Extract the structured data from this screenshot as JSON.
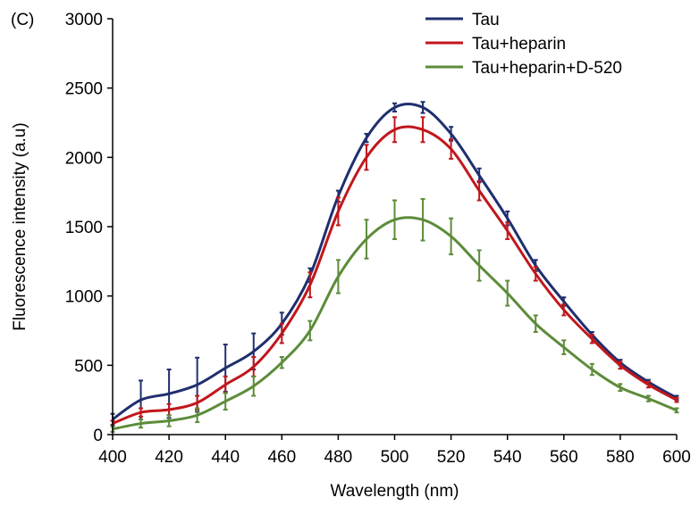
{
  "panel_label": "(C)",
  "chart_data": {
    "type": "line",
    "title": "",
    "xlabel": "Wavelength (nm)",
    "ylabel": "Fluorescence intensity (a.u)",
    "xlim": [
      400,
      600
    ],
    "ylim": [
      0,
      3000
    ],
    "xticks": [
      400,
      420,
      440,
      460,
      480,
      500,
      520,
      540,
      560,
      580,
      600
    ],
    "yticks": [
      0,
      500,
      1000,
      1500,
      2000,
      2500,
      3000
    ],
    "grid": false,
    "legend_position": "top-right",
    "x": [
      400,
      410,
      420,
      430,
      440,
      450,
      460,
      470,
      480,
      490,
      500,
      510,
      520,
      530,
      540,
      550,
      560,
      570,
      580,
      590,
      600
    ],
    "series": [
      {
        "name": "Tau",
        "color": "#1f2f6e",
        "values": [
          110,
          250,
          295,
          360,
          480,
          600,
          800,
          1150,
          1720,
          2140,
          2360,
          2360,
          2170,
          1870,
          1560,
          1220,
          960,
          720,
          520,
          380,
          265
        ],
        "errors": [
          40,
          140,
          175,
          195,
          170,
          130,
          80,
          50,
          40,
          30,
          30,
          40,
          50,
          50,
          50,
          40,
          30,
          20,
          20,
          15,
          15
        ]
      },
      {
        "name": "Tau+heparin",
        "color": "#c0171c",
        "values": [
          80,
          160,
          180,
          230,
          360,
          490,
          730,
          1080,
          1610,
          2000,
          2200,
          2200,
          2060,
          1760,
          1470,
          1160,
          900,
          690,
          500,
          360,
          250
        ],
        "errors": [
          20,
          30,
          40,
          50,
          60,
          70,
          70,
          90,
          100,
          90,
          90,
          90,
          70,
          70,
          60,
          50,
          40,
          30,
          25,
          20,
          15
        ]
      },
      {
        "name": "Tau+heparin+D-520",
        "color": "#5c8c3a",
        "values": [
          40,
          80,
          100,
          140,
          240,
          350,
          520,
          750,
          1140,
          1410,
          1550,
          1550,
          1430,
          1220,
          1020,
          800,
          630,
          470,
          340,
          260,
          175
        ],
        "errors": [
          20,
          30,
          40,
          50,
          60,
          70,
          40,
          70,
          120,
          140,
          140,
          150,
          130,
          110,
          90,
          60,
          50,
          40,
          25,
          20,
          15
        ]
      }
    ]
  }
}
